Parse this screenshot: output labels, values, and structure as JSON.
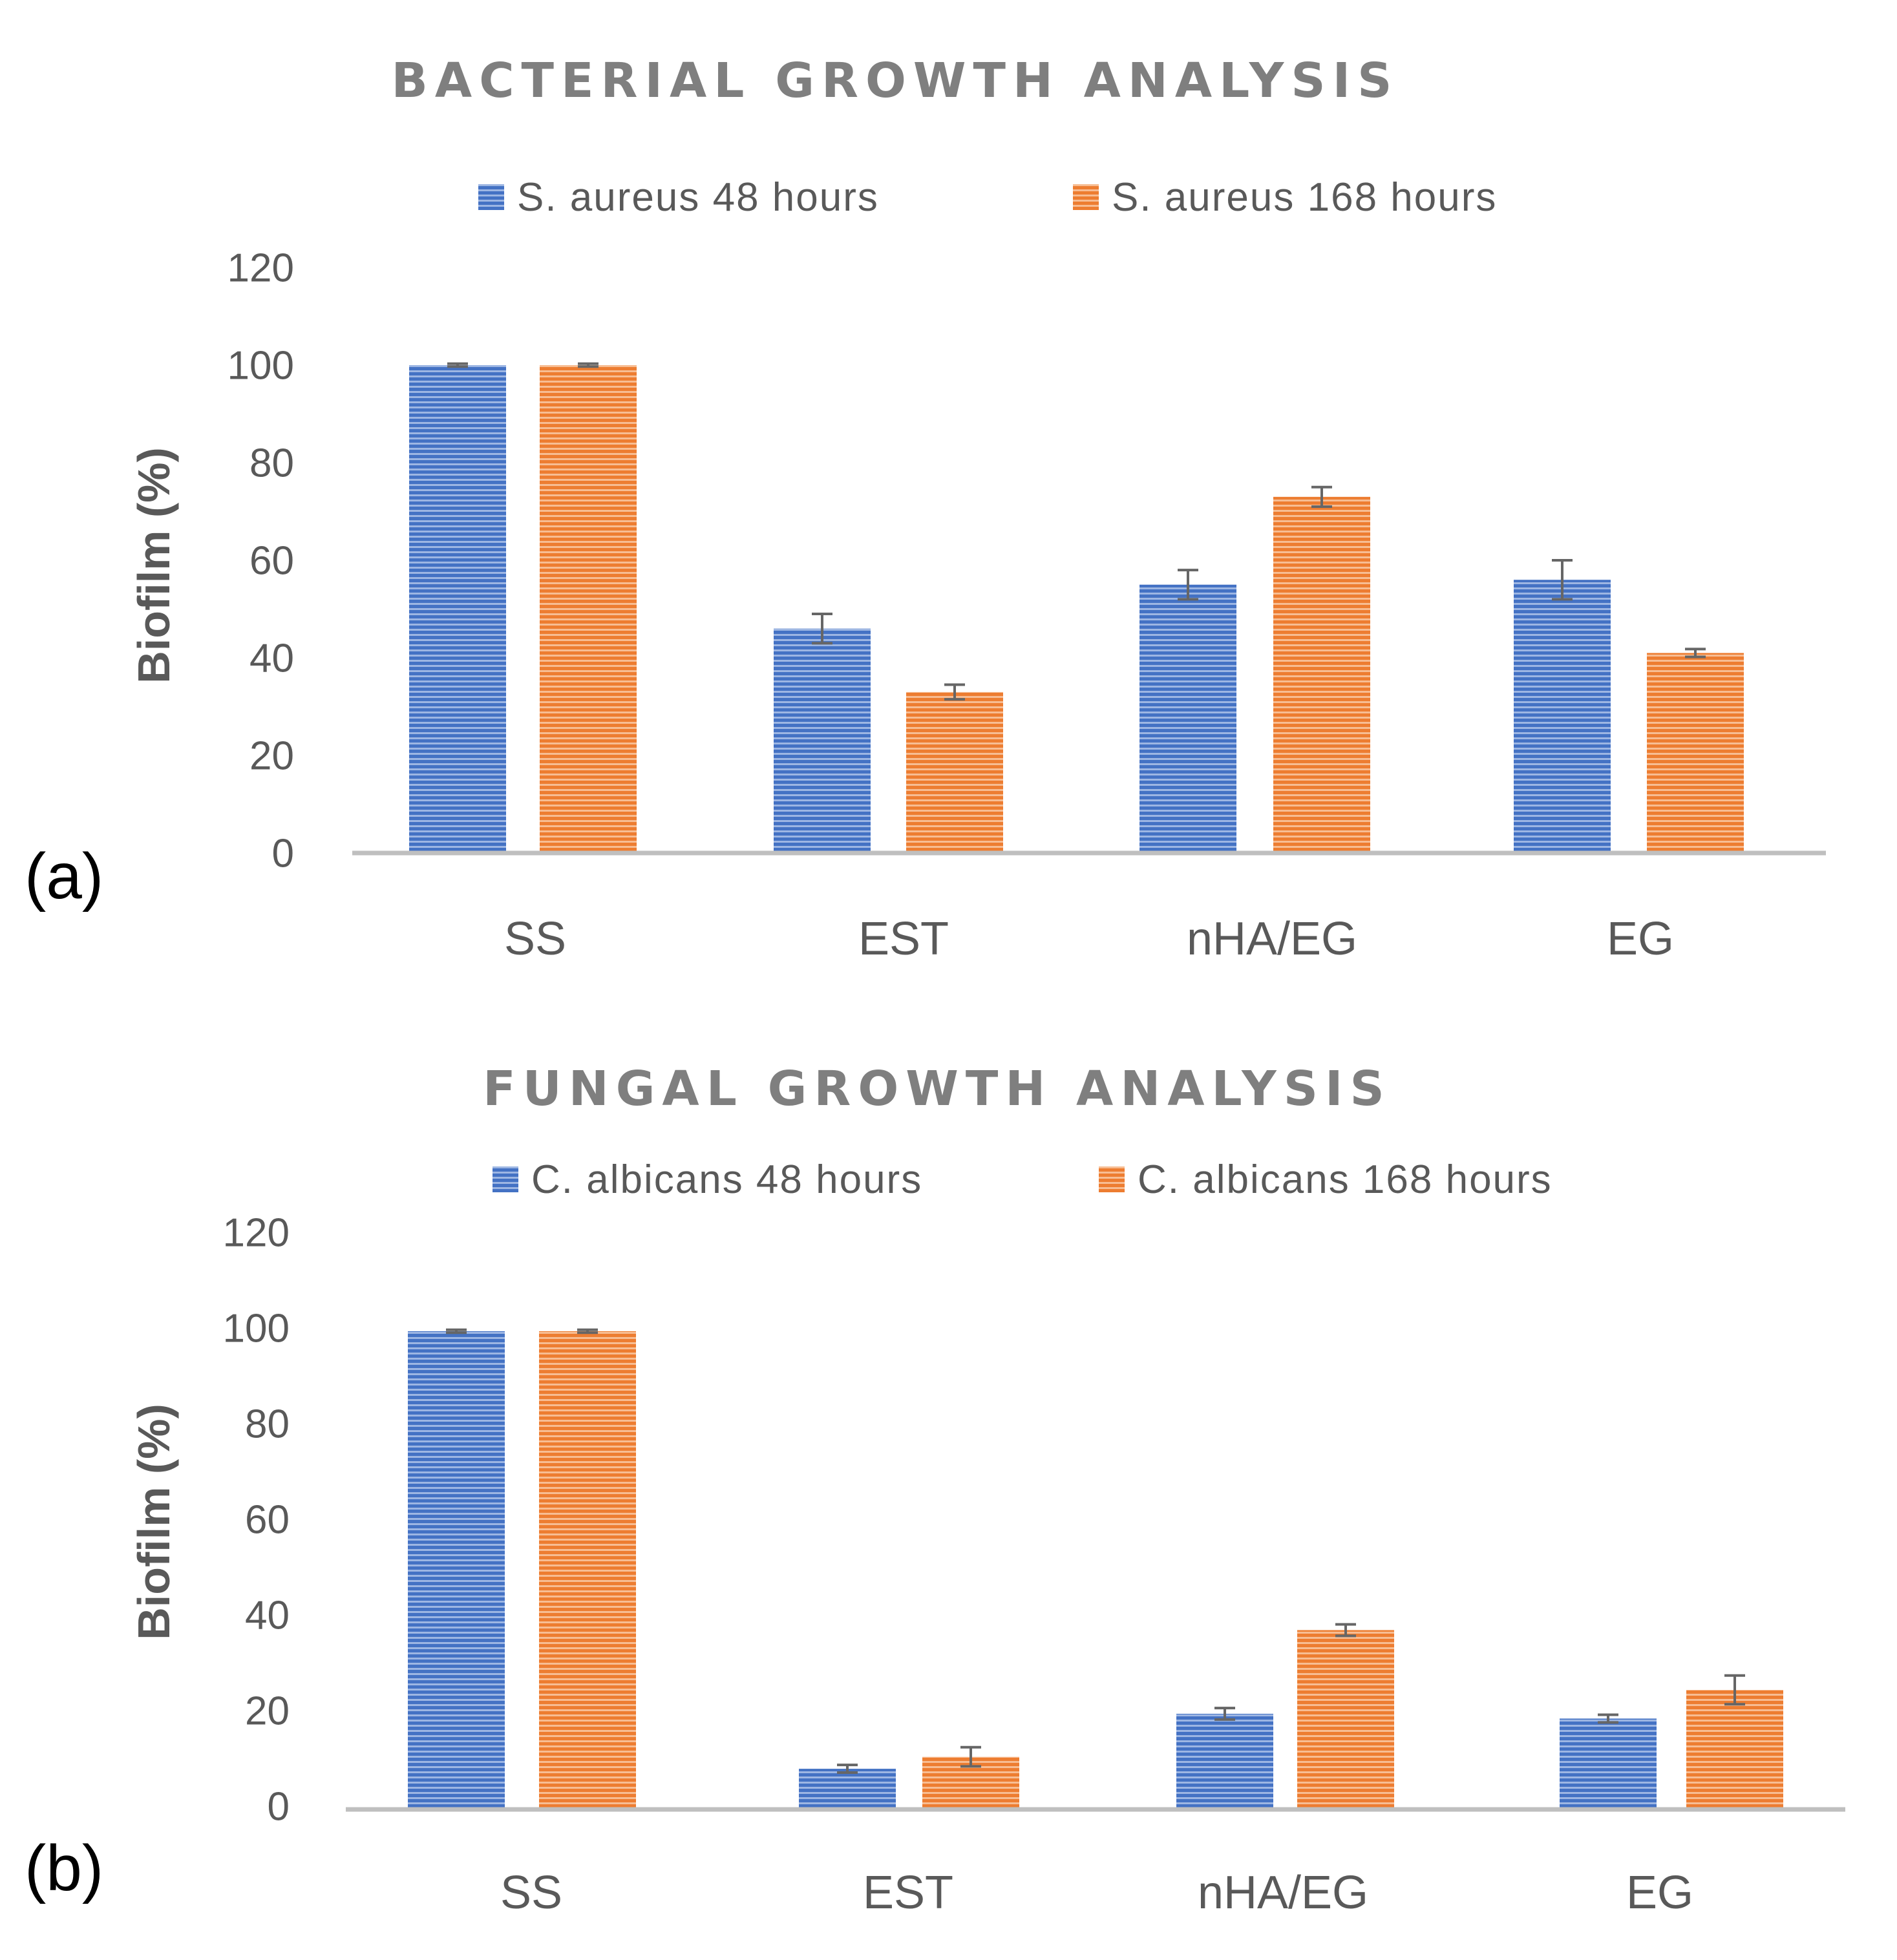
{
  "colors": {
    "series_48": "#4472c4",
    "series_168": "#ed7d31"
  },
  "chart_data": [
    {
      "type": "bar",
      "panel_label": "(a)",
      "title": "BACTERIAL GROWTH ANALYSIS",
      "ylabel": "Biofilm (%)",
      "xlabel": "",
      "ylim": [
        0,
        120
      ],
      "yticks": [
        "0",
        "20",
        "40",
        "60",
        "80",
        "100",
        "120"
      ],
      "categories": [
        "SS",
        "EST",
        "nHA/EG",
        "EG"
      ],
      "legend_position": "top",
      "series": [
        {
          "name": "S. aureus 48 hours",
          "values": [
            100,
            46,
            55,
            56
          ],
          "errors": [
            0.3,
            3,
            3,
            4
          ]
        },
        {
          "name": "S. aureus 168 hours",
          "values": [
            100,
            33,
            73,
            41
          ],
          "errors": [
            0.3,
            1.5,
            2,
            0.8
          ]
        }
      ]
    },
    {
      "type": "bar",
      "panel_label": "(b)",
      "title": "FUNGAL GROWTH ANALYSIS",
      "ylabel": "Biofilm (%)",
      "xlabel": "",
      "ylim": [
        0,
        120
      ],
      "yticks": [
        "0",
        "20",
        "40",
        "60",
        "80",
        "100",
        "120"
      ],
      "categories": [
        "SS",
        "EST",
        "nHA/EG",
        "EG"
      ],
      "legend_position": "top",
      "series": [
        {
          "name": "C. albicans 48 hours",
          "values": [
            100,
            8.5,
            20,
            19
          ],
          "errors": [
            0.3,
            0.8,
            1.2,
            0.8
          ]
        },
        {
          "name": "C. albicans 168 hours",
          "values": [
            100,
            11,
            37.5,
            25
          ],
          "errors": [
            0.3,
            2,
            1.2,
            3
          ]
        }
      ]
    }
  ]
}
